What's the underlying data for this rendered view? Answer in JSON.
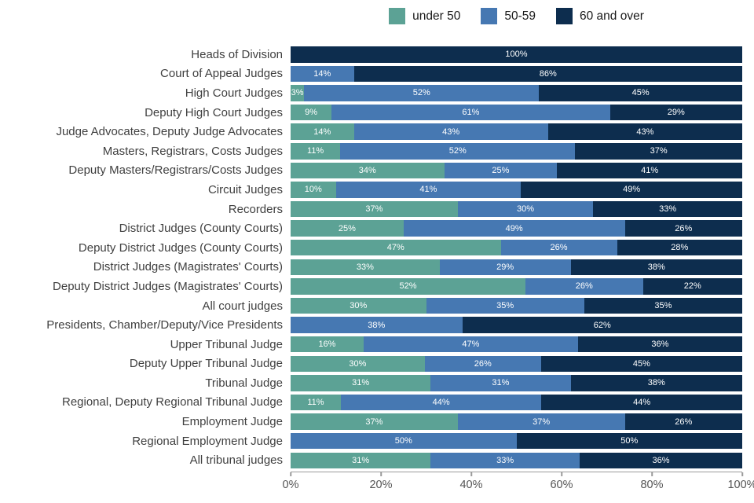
{
  "legend": {
    "entries": [
      {
        "label": "under 50",
        "color": "#5CA295"
      },
      {
        "label": "50-59",
        "color": "#4678B2"
      },
      {
        "label": "60 and over",
        "color": "#0D2D4E"
      }
    ]
  },
  "chart_data": {
    "type": "bar",
    "orientation": "horizontal",
    "stacked": true,
    "title": "",
    "xlabel": "",
    "ylabel": "",
    "xlim": [
      0,
      100
    ],
    "x_ticks": [
      "0%",
      "20%",
      "40%",
      "60%",
      "80%",
      "100%"
    ],
    "grid": false,
    "legend_position": "top",
    "value_label_suffix": "%",
    "categories": [
      "Heads of Division",
      "Court of Appeal Judges",
      "High Court Judges",
      "Deputy High Court Judges",
      "Judge Advocates, Deputy Judge Advocates",
      "Masters, Registrars, Costs Judges",
      "Deputy Masters/Registrars/Costs Judges",
      "Circuit Judges",
      "Recorders",
      "District Judges (County Courts)",
      "Deputy District Judges (County Courts)",
      "District Judges (Magistrates' Courts)",
      "Deputy District Judges (Magistrates' Courts)",
      "All court judges",
      "Presidents, Chamber/Deputy/Vice Presidents",
      "Upper Tribunal Judge",
      "Deputy Upper Tribunal Judge",
      "Tribunal Judge",
      "Regional, Deputy Regional Tribunal Judge",
      "Employment Judge",
      "Regional Employment Judge",
      "All tribunal judges"
    ],
    "series": [
      {
        "name": "under 50",
        "color": "#5CA295",
        "values": [
          0,
          0,
          3,
          9,
          14,
          11,
          34,
          10,
          37,
          25,
          47,
          33,
          52,
          30,
          0,
          16,
          30,
          31,
          11,
          37,
          0,
          31
        ]
      },
      {
        "name": "50-59",
        "color": "#4678B2",
        "values": [
          0,
          14,
          52,
          61,
          43,
          52,
          25,
          41,
          30,
          49,
          26,
          29,
          26,
          35,
          38,
          47,
          26,
          31,
          44,
          37,
          50,
          33
        ]
      },
      {
        "name": "60 and over",
        "color": "#0D2D4E",
        "values": [
          100,
          86,
          45,
          29,
          43,
          37,
          41,
          49,
          33,
          26,
          28,
          38,
          22,
          35,
          62,
          36,
          45,
          38,
          44,
          26,
          50,
          36
        ]
      }
    ]
  }
}
